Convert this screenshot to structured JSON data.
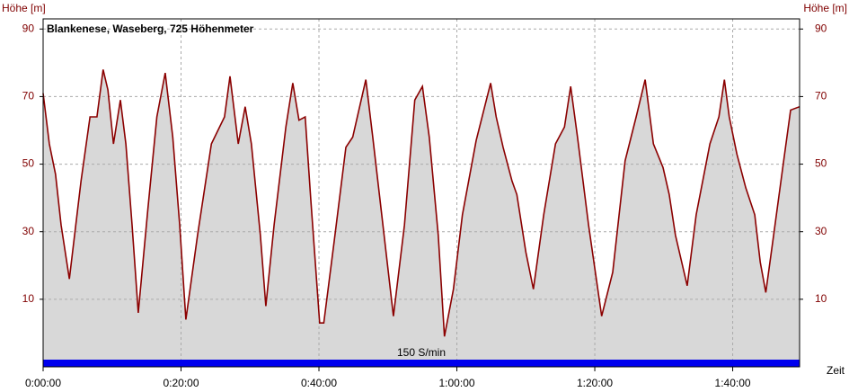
{
  "chart_data": {
    "type": "area",
    "title": "Blankenese, Waseberg, 725 Höhenmeter",
    "y_label": "Höhe [m]",
    "y2_label": "Höhe [m]",
    "x_label": "Zeit",
    "annotation": "150 S/min",
    "line_color": "#8b0000",
    "fill_color": "#d8d8d8",
    "band_color": "#0000ee",
    "grid": true,
    "xlim": [
      0,
      109.7
    ],
    "ylim": [
      -10,
      93
    ],
    "y2lim": [
      -10,
      93
    ],
    "xticks": [
      {
        "value": 0,
        "label": "0:00:00"
      },
      {
        "value": 20,
        "label": "0:20:00"
      },
      {
        "value": 40,
        "label": "0:40:00"
      },
      {
        "value": 60,
        "label": "1:00:00"
      },
      {
        "value": 80,
        "label": "1:20:00"
      },
      {
        "value": 100,
        "label": "1:40:00"
      }
    ],
    "yticks": [
      10,
      30,
      50,
      70,
      90
    ],
    "y2ticks": [
      10,
      30,
      50,
      70,
      90
    ],
    "x": [
      0,
      0.9,
      1.8,
      2.6,
      3.8,
      5.5,
      6.8,
      7.8,
      8.7,
      9.4,
      10.2,
      11.2,
      12.0,
      12.9,
      13.8,
      15.2,
      16.5,
      17.7,
      18.8,
      19.8,
      20.7,
      22.4,
      24.4,
      26.3,
      27.1,
      28.3,
      29.3,
      30.2,
      31.5,
      32.3,
      33.5,
      35.2,
      36.2,
      37.1,
      38.0,
      38.8,
      40.1,
      40.7,
      42.2,
      43.9,
      44.9,
      46.8,
      47.8,
      49.1,
      50.8,
      52.4,
      53.9,
      55.0,
      56.0,
      57.3,
      58.2,
      59.5,
      60.8,
      62.8,
      64.9,
      65.7,
      66.7,
      68.0,
      68.7,
      70.0,
      71.1,
      72.6,
      74.3,
      75.6,
      76.5,
      77.5,
      79.1,
      81.0,
      82.6,
      84.4,
      86.0,
      87.3,
      88.5,
      89.9,
      90.8,
      91.7,
      93.4,
      94.7,
      96.7,
      98.0,
      98.8,
      99.5,
      100.6,
      101.9,
      103.2,
      104.0,
      104.8,
      105.8,
      107.4,
      108.4,
      109.7
    ],
    "values": [
      71,
      56,
      47,
      32,
      16,
      45,
      64,
      64,
      78,
      72,
      56,
      69,
      56,
      32,
      6,
      37,
      64,
      77,
      58,
      32,
      4,
      29,
      56,
      64,
      76,
      56,
      67,
      56,
      29,
      8,
      32,
      61,
      74,
      63,
      64,
      40,
      3,
      3,
      27,
      55,
      58,
      75,
      58,
      35,
      5,
      32,
      69,
      73,
      58,
      29,
      -1,
      13,
      35,
      57,
      74,
      64,
      55,
      45,
      41,
      24,
      13,
      35,
      56,
      61,
      73,
      58,
      32,
      5,
      18,
      51,
      64,
      75,
      56,
      49,
      41,
      29,
      14,
      35,
      56,
      64,
      75,
      64,
      53,
      43,
      35,
      21,
      12,
      27,
      51,
      66,
      67
    ]
  }
}
